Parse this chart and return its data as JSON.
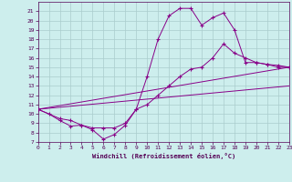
{
  "xlabel": "Windchill (Refroidissement éolien,°C)",
  "bg_color": "#cdeeed",
  "grid_color": "#aacccc",
  "line_color": "#880088",
  "xmin": 0,
  "xmax": 23,
  "ymin": 7,
  "ymax": 22,
  "line1_x": [
    0,
    1,
    2,
    3,
    4,
    5,
    6,
    7,
    8,
    9,
    10,
    11,
    12,
    13,
    14,
    15,
    16,
    17,
    18,
    19,
    20,
    21,
    22,
    23
  ],
  "line1_y": [
    10.5,
    10.0,
    9.3,
    8.7,
    8.8,
    8.3,
    7.3,
    7.8,
    8.8,
    10.5,
    14.0,
    18.0,
    20.5,
    21.3,
    21.3,
    19.5,
    20.3,
    20.8,
    19.0,
    15.5,
    15.5,
    15.3,
    15.0,
    15.0
  ],
  "line2_x": [
    0,
    2,
    3,
    4,
    5,
    6,
    7,
    8,
    9,
    10,
    11,
    12,
    13,
    14,
    15,
    16,
    17,
    18,
    19,
    20,
    21,
    22,
    23
  ],
  "line2_y": [
    10.5,
    9.5,
    9.3,
    8.8,
    8.5,
    8.5,
    8.5,
    9.0,
    10.5,
    11.0,
    12.0,
    13.0,
    14.0,
    14.8,
    15.0,
    16.0,
    17.5,
    16.5,
    16.0,
    15.5,
    15.3,
    15.2,
    15.0
  ],
  "line3_x": [
    0,
    23
  ],
  "line3_y": [
    10.5,
    15.0
  ],
  "line4_x": [
    0,
    23
  ],
  "line4_y": [
    10.5,
    13.0
  ],
  "yticks": [
    7,
    8,
    9,
    10,
    11,
    12,
    13,
    14,
    15,
    16,
    17,
    18,
    19,
    20,
    21
  ],
  "xticks": [
    0,
    1,
    2,
    3,
    4,
    5,
    6,
    7,
    8,
    9,
    10,
    11,
    12,
    13,
    14,
    15,
    16,
    17,
    18,
    19,
    20,
    21,
    22,
    23
  ]
}
